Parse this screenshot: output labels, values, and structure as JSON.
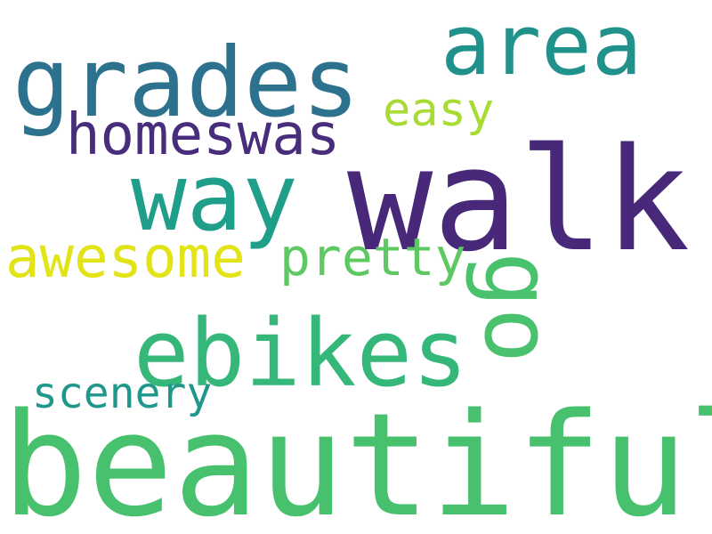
{
  "words": {
    "beautiful": {
      "text": "beautiful",
      "color": "#48c16e"
    },
    "walk": {
      "text": "walk",
      "color": "#482878"
    },
    "grades": {
      "text": "grades",
      "color": "#2c728e"
    },
    "area": {
      "text": "area",
      "color": "#21918c"
    },
    "way": {
      "text": "way",
      "color": "#1f9e89"
    },
    "ebikes": {
      "text": "ebikes",
      "color": "#35b779"
    },
    "go": {
      "text": "go",
      "color": "#4ac16d"
    },
    "homeswas": {
      "text": "homeswas",
      "color": "#472d7b"
    },
    "easy": {
      "text": "easy",
      "color": "#a8db34"
    },
    "awesome": {
      "text": "awesome",
      "color": "#e2e418"
    },
    "pretty": {
      "text": "pretty",
      "color": "#5ec962"
    },
    "scenery": {
      "text": "scenery",
      "color": "#1f988b"
    }
  }
}
